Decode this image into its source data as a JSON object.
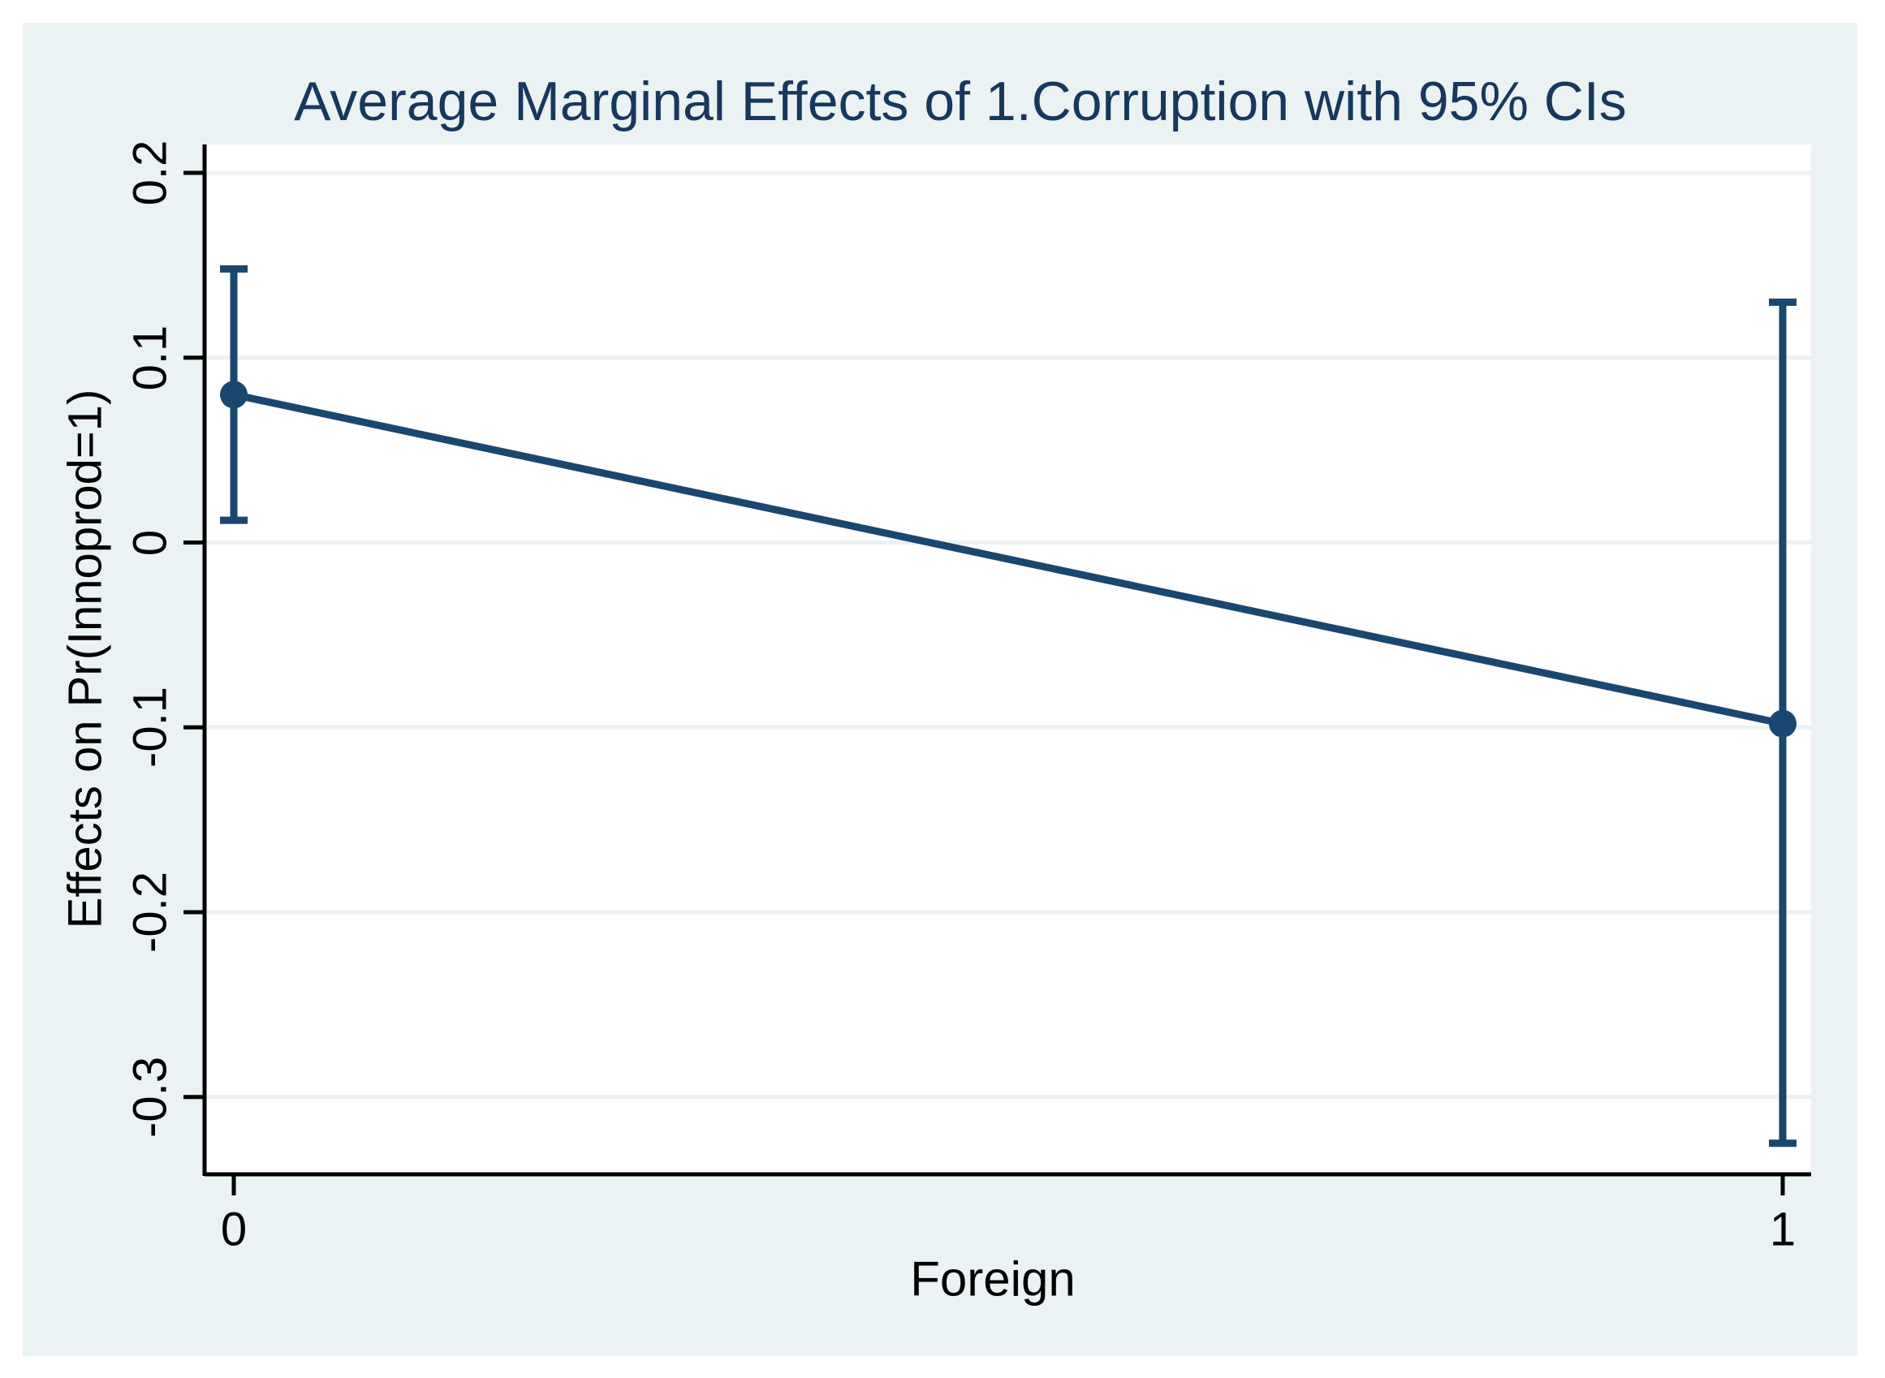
{
  "page": {
    "background": "#ffffff",
    "canvas_background": "#eaf2f3"
  },
  "chart_data": {
    "type": "line",
    "title": "Average Marginal Effects of 1.Corruption with 95% CIs",
    "xlabel": "Foreign",
    "ylabel": "Effects on Pr(Innoprod=1)",
    "x": [
      0,
      1
    ],
    "series": [
      {
        "name": "Average marginal effect of 1.Corruption",
        "values": [
          0.08,
          -0.098
        ],
        "ci_low": [
          0.012,
          -0.325
        ],
        "ci_high": [
          0.148,
          0.13
        ]
      }
    ],
    "yticks": [
      0.2,
      0.1,
      0,
      -0.1,
      -0.2,
      -0.3
    ],
    "ytick_labels": [
      "0.2",
      "0.1",
      "0",
      "-0.1",
      "-0.2",
      "-0.3"
    ],
    "xticks": [
      0,
      1
    ],
    "xtick_labels": [
      "0",
      "1"
    ],
    "ylim": [
      -0.342,
      0.215
    ],
    "xlim": [
      -0.019,
      1.018
    ],
    "grid": true,
    "legend": "none",
    "colors": {
      "series": "#1a476f",
      "grid": "#eaf2f3",
      "axis": "#000000",
      "title": "#17375e",
      "plot_background": "#ffffff"
    }
  }
}
